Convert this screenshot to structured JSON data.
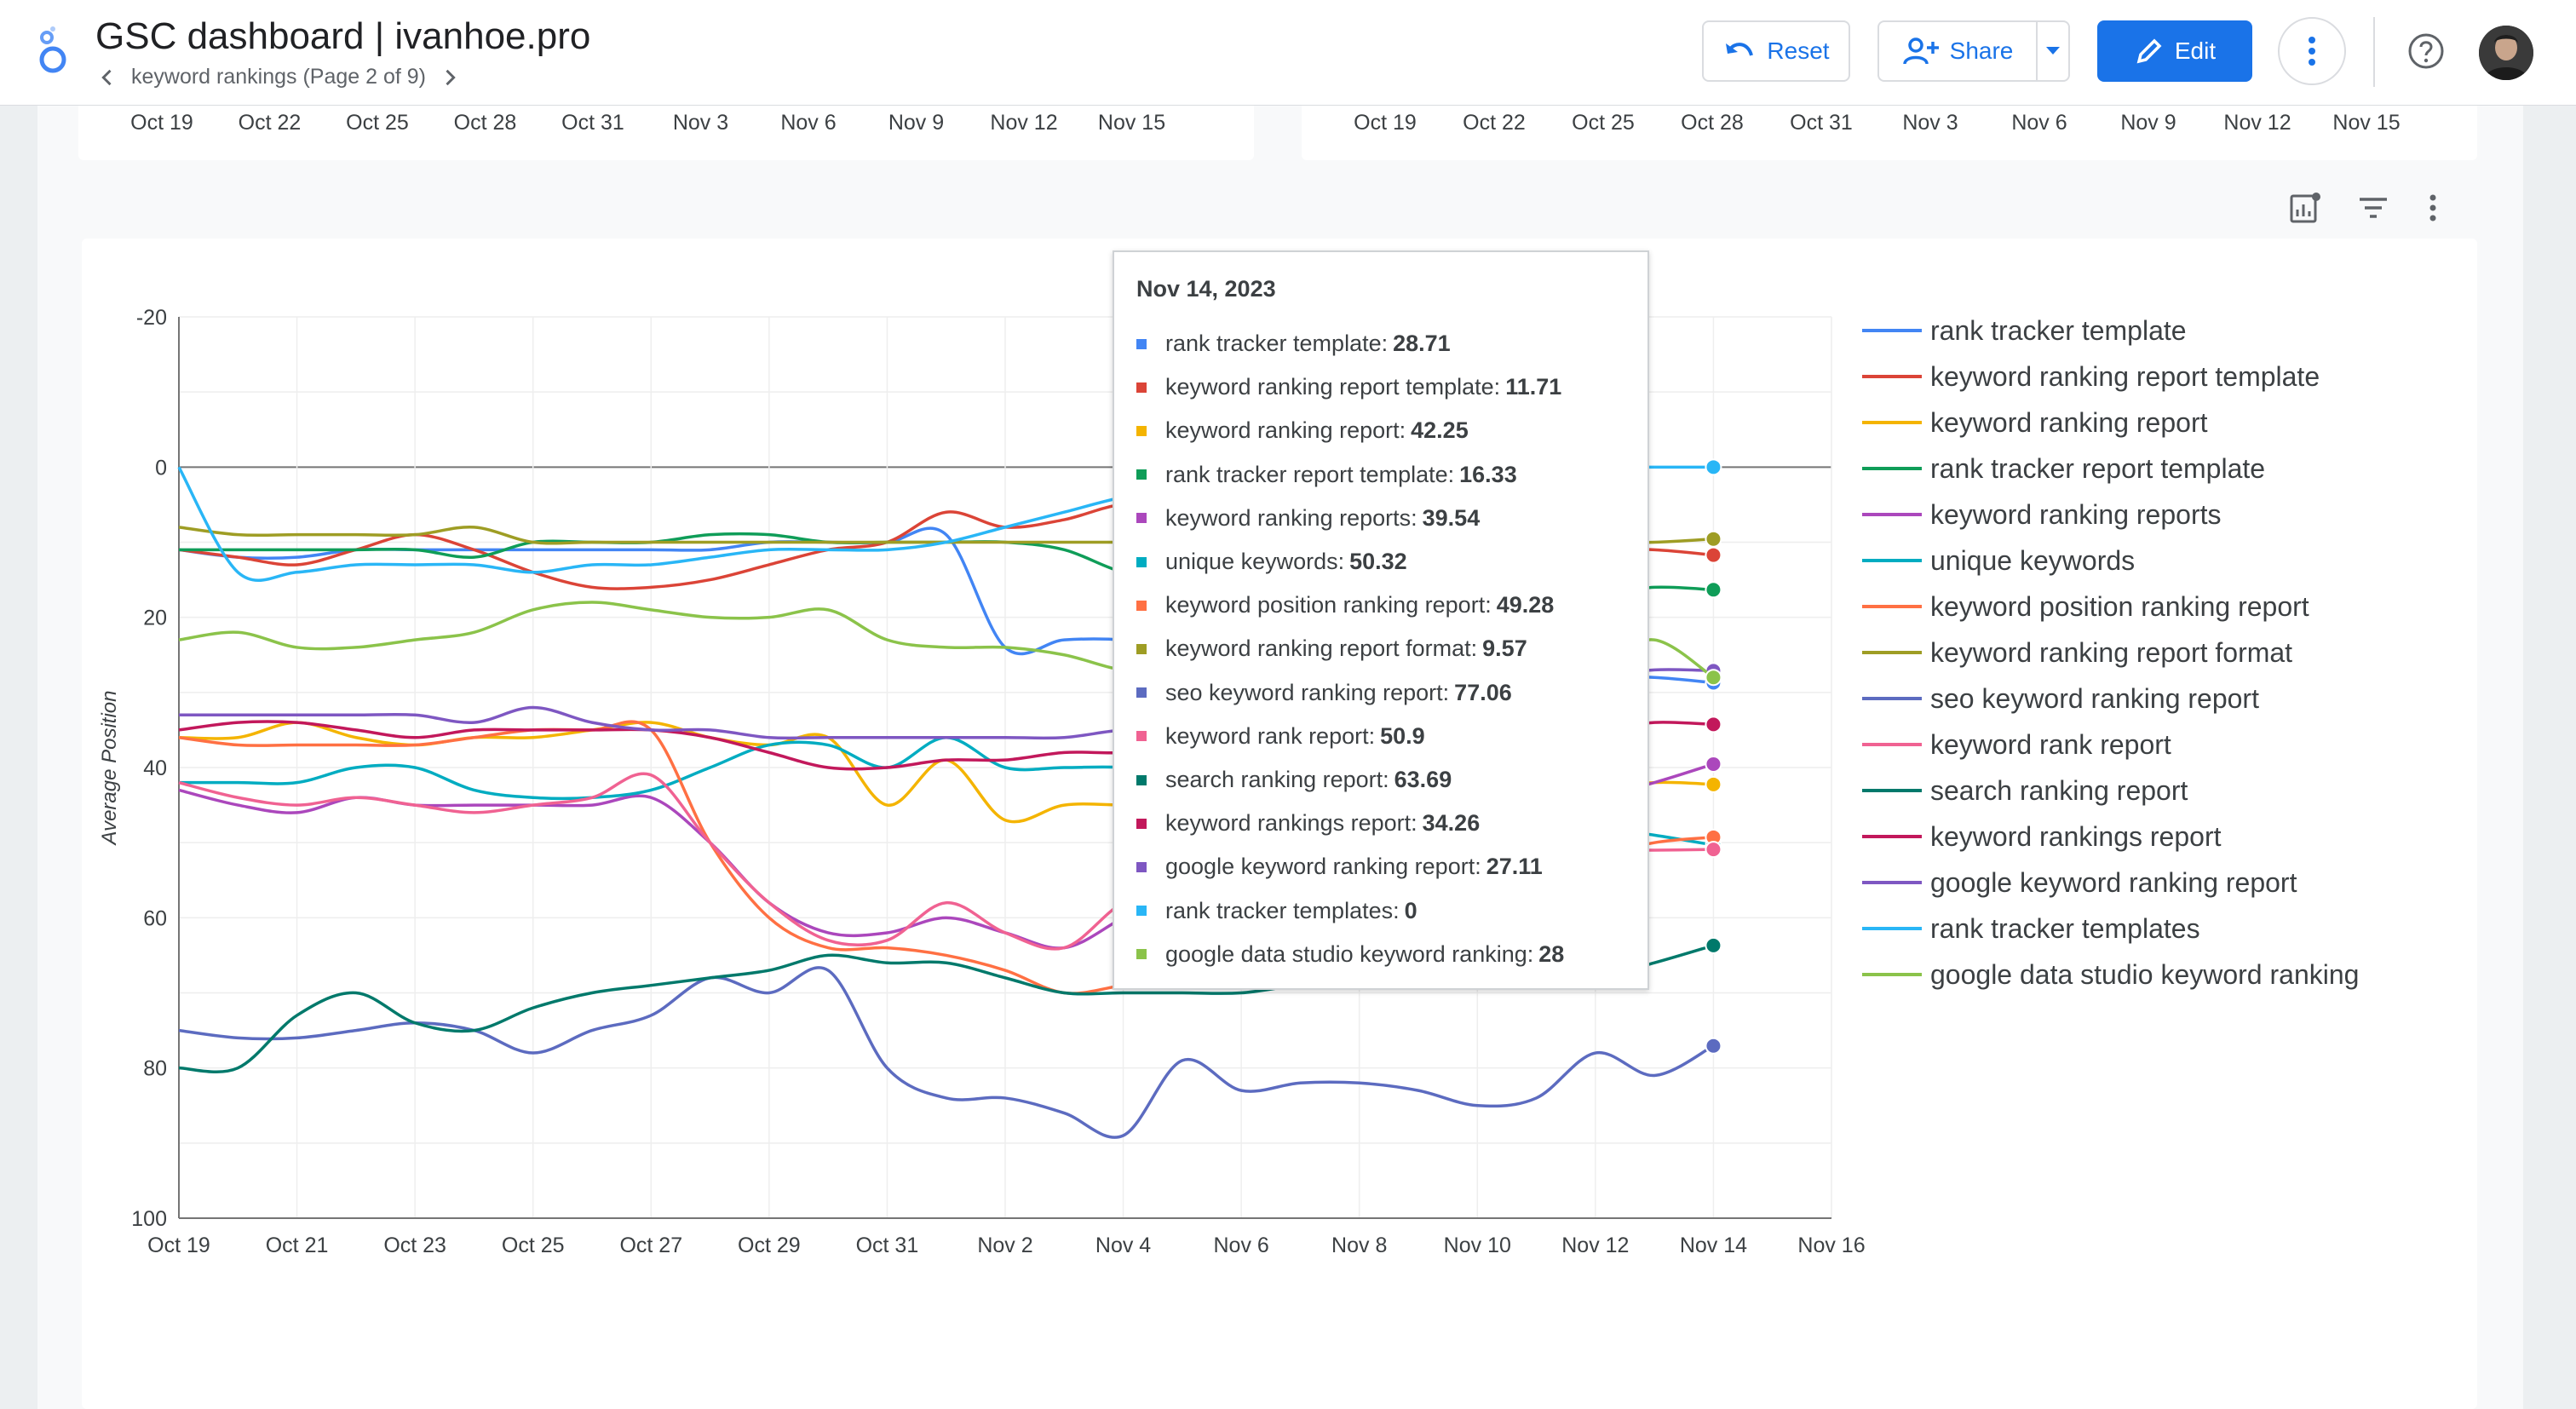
{
  "header": {
    "title": "GSC dashboard | ivanhoe.pro",
    "page_nav": "keyword rankings (Page 2 of 9)",
    "reset_label": "Reset",
    "share_label": "Share",
    "edit_label": "Edit",
    "accent": "#1a73e8"
  },
  "top_charts": {
    "left_ticks": [
      "Oct 19",
      "Oct 22",
      "Oct 25",
      "Oct 28",
      "Oct 31",
      "Nov 3",
      "Nov 6",
      "Nov 9",
      "Nov 12",
      "Nov 15"
    ],
    "right_ticks": [
      "Oct 19",
      "Oct 22",
      "Oct 25",
      "Oct 28",
      "Oct 31",
      "Nov 3",
      "Nov 6",
      "Nov 9",
      "Nov 12",
      "Nov 15"
    ]
  },
  "tooltip": {
    "date": "Nov 14, 2023",
    "rows": [
      {
        "label": "rank tracker template:",
        "value": "28.71"
      },
      {
        "label": "keyword ranking report template:",
        "value": "11.71"
      },
      {
        "label": "keyword ranking report:",
        "value": "42.25"
      },
      {
        "label": "rank tracker report template:",
        "value": "16.33"
      },
      {
        "label": "keyword ranking reports:",
        "value": "39.54"
      },
      {
        "label": "unique keywords:",
        "value": "50.32"
      },
      {
        "label": "keyword position ranking report:",
        "value": "49.28"
      },
      {
        "label": "keyword ranking report format:",
        "value": "9.57"
      },
      {
        "label": "seo keyword ranking report:",
        "value": "77.06"
      },
      {
        "label": "keyword rank report:",
        "value": "50.9"
      },
      {
        "label": "search ranking report:",
        "value": "63.69"
      },
      {
        "label": "keyword rankings report:",
        "value": "34.26"
      },
      {
        "label": "google keyword ranking report:",
        "value": "27.11"
      },
      {
        "label": "rank tracker templates:",
        "value": "0"
      },
      {
        "label": "google data studio keyword ranking:",
        "value": "28"
      }
    ]
  },
  "chart_data": {
    "type": "line",
    "ylabel": "Average Position",
    "ylim": [
      -20,
      100
    ],
    "y_reversed": true,
    "y_ticks": [
      -20,
      0,
      20,
      40,
      60,
      80,
      100
    ],
    "x_tick_labels": [
      "Oct 19",
      "Oct 21",
      "Oct 23",
      "Oct 25",
      "Oct 27",
      "Oct 29",
      "Oct 31",
      "Nov 2",
      "Nov 4",
      "Nov 6",
      "Nov 8",
      "Nov 10",
      "Nov 12",
      "Nov 14",
      "Nov 16"
    ],
    "x": [
      "Oct 19",
      "Oct 20",
      "Oct 21",
      "Oct 22",
      "Oct 23",
      "Oct 24",
      "Oct 25",
      "Oct 26",
      "Oct 27",
      "Oct 28",
      "Oct 29",
      "Oct 30",
      "Oct 31",
      "Nov 1",
      "Nov 2",
      "Nov 3",
      "Nov 4",
      "Nov 5",
      "Nov 6",
      "Nov 7",
      "Nov 8",
      "Nov 9",
      "Nov 10",
      "Nov 11",
      "Nov 12",
      "Nov 13",
      "Nov 14"
    ],
    "grid": true,
    "legend_position": "right",
    "series": [
      {
        "name": "rank tracker template",
        "color": "#4285f4",
        "values": [
          11,
          12,
          12,
          11,
          11,
          11,
          11,
          11,
          11,
          11,
          10,
          10,
          10,
          9,
          24,
          23,
          23,
          24,
          25,
          26,
          26,
          27,
          27,
          28,
          28,
          28,
          28.71
        ]
      },
      {
        "name": "keyword ranking report template",
        "color": "#db4437",
        "values": [
          11,
          12,
          13,
          11,
          9,
          11,
          14,
          16,
          16,
          15,
          13,
          11,
          10,
          6,
          8,
          7,
          5,
          6,
          7,
          8,
          9,
          10,
          10,
          11,
          11,
          11,
          11.71
        ]
      },
      {
        "name": "keyword ranking report",
        "color": "#f4b400",
        "values": [
          36,
          36,
          34,
          36,
          37,
          36,
          36,
          35,
          34,
          36,
          37,
          36,
          45,
          39,
          47,
          45,
          45,
          45,
          46,
          46,
          45,
          44,
          44,
          43,
          43,
          42,
          42.25
        ]
      },
      {
        "name": "rank tracker report template",
        "color": "#0f9d58",
        "values": [
          11,
          11,
          11,
          11,
          11,
          12,
          10,
          10,
          10,
          9,
          9,
          10,
          10,
          10,
          10,
          11,
          14,
          15,
          16,
          16,
          17,
          17,
          17,
          17,
          17,
          16,
          16.33
        ]
      },
      {
        "name": "keyword ranking reports",
        "color": "#ab47bc",
        "values": [
          43,
          45,
          46,
          44,
          45,
          45,
          45,
          45,
          44,
          50,
          58,
          62,
          62,
          60,
          62,
          64,
          60,
          56,
          55,
          52,
          50,
          48,
          46,
          45,
          44,
          42,
          39.54
        ]
      },
      {
        "name": "unique keywords",
        "color": "#00acc1",
        "values": [
          42,
          42,
          42,
          40,
          40,
          43,
          44,
          44,
          43,
          40,
          37,
          37,
          40,
          36,
          40,
          40,
          40,
          41,
          42,
          42,
          43,
          44,
          45,
          46,
          48,
          49,
          50.32
        ]
      },
      {
        "name": "keyword position ranking report",
        "color": "#ff7043",
        "values": [
          36,
          37,
          37,
          37,
          37,
          36,
          35,
          35,
          35,
          50,
          60,
          64,
          64,
          65,
          67,
          70,
          69,
          68,
          66,
          64,
          61,
          58,
          56,
          54,
          52,
          50,
          49.28
        ]
      },
      {
        "name": "keyword ranking report format",
        "color": "#9e9d24",
        "values": [
          8,
          9,
          9,
          9,
          9,
          8,
          10,
          10,
          10,
          10,
          10,
          10,
          10,
          10,
          10,
          10,
          10,
          10,
          10,
          10,
          10,
          10,
          10,
          10,
          10,
          10,
          9.57
        ]
      },
      {
        "name": "seo keyword ranking report",
        "color": "#5c6bc0",
        "values": [
          75,
          76,
          76,
          75,
          74,
          75,
          78,
          75,
          73,
          68,
          70,
          67,
          80,
          84,
          84,
          86,
          89,
          79,
          83,
          82,
          82,
          83,
          85,
          84,
          78,
          81,
          77.06
        ]
      },
      {
        "name": "keyword rank report",
        "color": "#f06292",
        "values": [
          42,
          44,
          45,
          44,
          45,
          46,
          45,
          44,
          41,
          50,
          58,
          63,
          63,
          58,
          62,
          64,
          58,
          56,
          55,
          53,
          52,
          51,
          51,
          51,
          51,
          51,
          50.9
        ]
      },
      {
        "name": "search ranking report",
        "color": "#00796b",
        "values": [
          80,
          80,
          73,
          70,
          74,
          75,
          72,
          70,
          69,
          68,
          67,
          65,
          66,
          66,
          68,
          70,
          70,
          70,
          70,
          69,
          69,
          69,
          69,
          69,
          68,
          66,
          63.69
        ]
      },
      {
        "name": "keyword rankings report",
        "color": "#c2185b",
        "values": [
          35,
          34,
          34,
          35,
          36,
          35,
          35,
          35,
          35,
          36,
          38,
          40,
          40,
          39,
          39,
          38,
          38,
          37,
          37,
          36,
          36,
          35,
          35,
          35,
          35,
          34,
          34.26
        ]
      },
      {
        "name": "google keyword ranking report",
        "color": "#7e57c2",
        "values": [
          33,
          33,
          33,
          33,
          33,
          34,
          32,
          34,
          35,
          35,
          36,
          36,
          36,
          36,
          36,
          36,
          35,
          35,
          34,
          33,
          32,
          31,
          30,
          29,
          28,
          27,
          27.11
        ]
      },
      {
        "name": "rank tracker templates",
        "color": "#29b6f6",
        "values": [
          0,
          14,
          14,
          13,
          13,
          13,
          14,
          13,
          13,
          12,
          11,
          11,
          11,
          10,
          8,
          6,
          4,
          3,
          2,
          1,
          1,
          0,
          0,
          0,
          0,
          0,
          0
        ]
      },
      {
        "name": "google data studio keyword ranking",
        "color": "#8bc34a",
        "values": [
          23,
          22,
          24,
          24,
          23,
          22,
          19,
          18,
          19,
          20,
          20,
          19,
          23,
          24,
          24,
          25,
          27,
          27,
          27,
          27,
          27,
          27,
          27,
          27,
          26,
          23,
          28
        ]
      }
    ]
  }
}
